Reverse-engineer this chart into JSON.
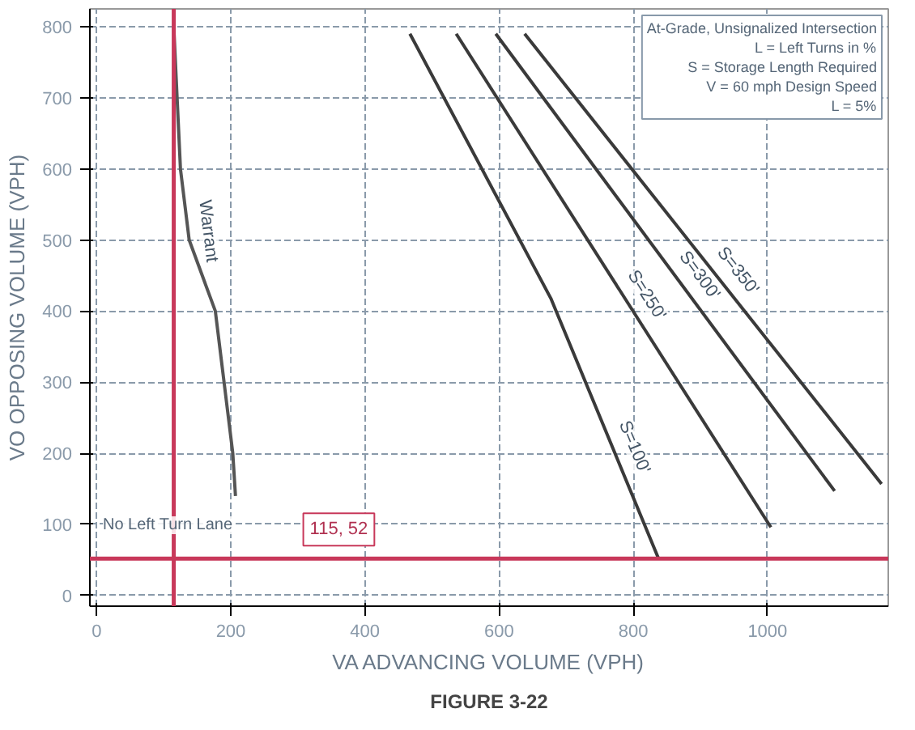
{
  "chart_data": {
    "type": "line",
    "xlabel": "VA ADVANCING VOLUME (VPH)",
    "ylabel": "VO OPPOSING VOLUME (VPH)",
    "xlim": [
      -10,
      1180
    ],
    "ylim": [
      -15,
      825
    ],
    "xticks": [
      0,
      200,
      400,
      600,
      800,
      1000
    ],
    "yticks": [
      0,
      100,
      200,
      300,
      400,
      500,
      600,
      700,
      800
    ],
    "grid": true,
    "series": [
      {
        "name": "Warrant",
        "color": "#555555",
        "x": [
          115,
          125,
          138,
          177,
          190,
          203,
          207
        ],
        "values": [
          800,
          600,
          500,
          400,
          300,
          200,
          140
        ]
      },
      {
        "name": "S=100'",
        "color": "#3a3a3a",
        "x": [
          467,
          677,
          838
        ],
        "values": [
          790,
          418,
          51
        ]
      },
      {
        "name": "S=250'",
        "color": "#3a3a3a",
        "x": [
          536,
          1005
        ],
        "values": [
          790,
          96
        ]
      },
      {
        "name": "S=300'",
        "color": "#3a3a3a",
        "x": [
          595,
          1100
        ],
        "values": [
          790,
          147
        ]
      },
      {
        "name": "S=350'",
        "color": "#3a3a3a",
        "x": [
          638,
          1170
        ],
        "values": [
          790,
          157
        ]
      }
    ],
    "ref_lines": [
      {
        "axis": "x",
        "value": 115,
        "color": "#c8385a"
      },
      {
        "axis": "y",
        "value": 52,
        "color": "#c8385a"
      }
    ],
    "annotations": [
      "115, 52",
      "No Left Turn Lane",
      "At-Grade, Unsignalized Intersection",
      "L = Left Turns in %",
      "S = Storage Length Required",
      "V = 60 mph Design Speed",
      "L = 5%",
      "FIGURE 3-22"
    ]
  }
}
